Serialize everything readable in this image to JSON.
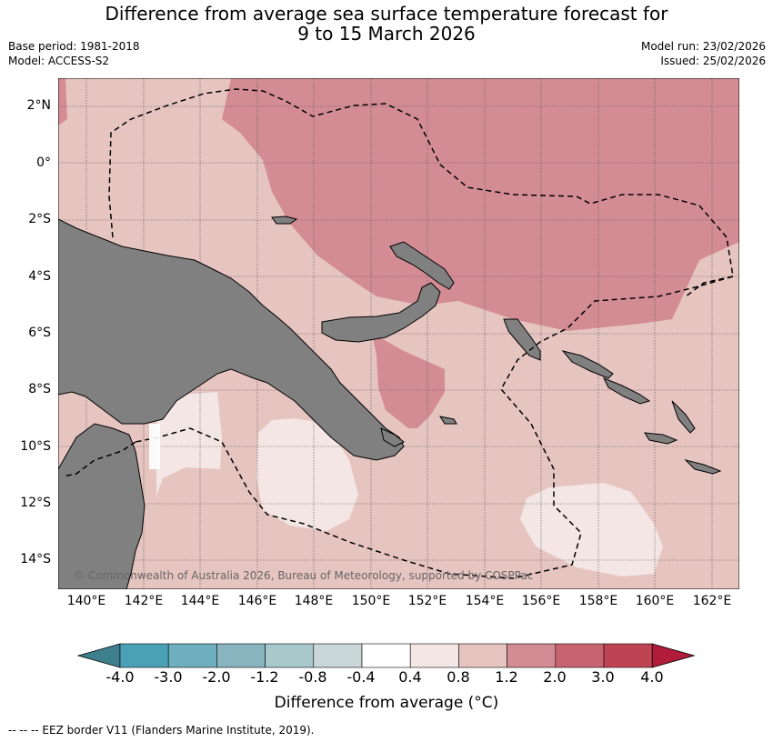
{
  "title": {
    "line1": "Difference from average sea surface temperature forecast for",
    "line2": "9 to 15 March 2026"
  },
  "meta": {
    "base_period": "Base period: 1981-2018",
    "model": "Model: ACCESS-S2",
    "model_run": "Model run: 23/02/2026",
    "issued": "Issued: 25/02/2026"
  },
  "map": {
    "lat_labels": [
      "2°N",
      "0°",
      "2°S",
      "4°S",
      "6°S",
      "8°S",
      "10°S",
      "12°S",
      "14°S"
    ],
    "lon_labels": [
      "140°E",
      "142°E",
      "144°E",
      "146°E",
      "148°E",
      "150°E",
      "152°E",
      "154°E",
      "156°E",
      "158°E",
      "160°E",
      "162°E"
    ],
    "copyright": "© Commonwealth of Australia 2026, Bureau of Meteorology, supported by COSPPac",
    "colors": {
      "land": "#808080",
      "anom_0_4_0_8": "#f3e6e4",
      "anom_0_8_1_2": "#e6c4c0",
      "anom_1_2_2_0": "#d48c94",
      "anom_2_0_3_0": "#c76470"
    }
  },
  "colorbar": {
    "ticks": [
      "-4.0",
      "-3.0",
      "-2.0",
      "-1.2",
      "-0.8",
      "-0.4",
      "0.4",
      "0.8",
      "1.2",
      "2.0",
      "3.0",
      "4.0"
    ],
    "colors": [
      "#3d7f8d",
      "#4aa0b4",
      "#6dafbf",
      "#88b4c0",
      "#a8c8cc",
      "#cad7d9",
      "#ffffff",
      "#f4e6e4",
      "#e6c4c0",
      "#d48c94",
      "#c76470",
      "#bf4453",
      "#b01c3a"
    ],
    "label": "Difference from average (°C)"
  },
  "footer": "--  --  -- EEZ border V11 (Flanders Marine Institute, 2019)."
}
